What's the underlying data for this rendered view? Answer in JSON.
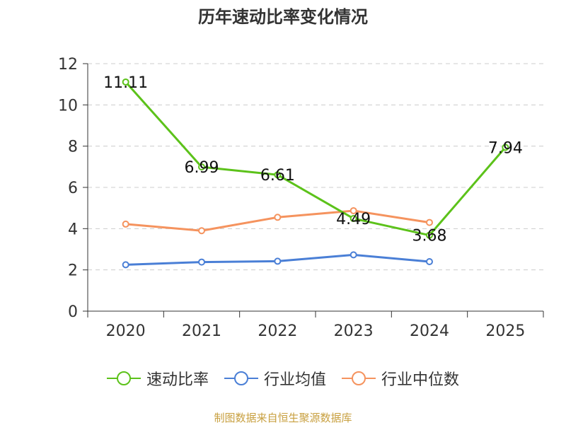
{
  "chart_data": {
    "type": "line",
    "title": "历年速动比率变化情况",
    "categories": [
      "2020",
      "2021",
      "2022",
      "2023",
      "2024",
      "2025"
    ],
    "ylim": [
      0,
      12
    ],
    "yticks": [
      0,
      2,
      4,
      6,
      8,
      10,
      12
    ],
    "grid": true,
    "legend_position": "bottom",
    "series": [
      {
        "name": "速动比率",
        "color": "#5cc21a",
        "values": [
          11.11,
          6.99,
          6.61,
          4.49,
          3.68,
          7.94
        ],
        "labels": [
          "11.11",
          "6.99",
          "6.61",
          "4.49",
          "3.68",
          "7.94"
        ]
      },
      {
        "name": "行业均值",
        "color": "#4a7fd6",
        "values": [
          2.25,
          2.38,
          2.42,
          2.73,
          2.4,
          null
        ]
      },
      {
        "name": "行业中位数",
        "color": "#f5935e",
        "values": [
          4.22,
          3.9,
          4.55,
          4.87,
          4.3,
          null
        ]
      }
    ]
  },
  "source": "制图数据来自恒生聚源数据库"
}
